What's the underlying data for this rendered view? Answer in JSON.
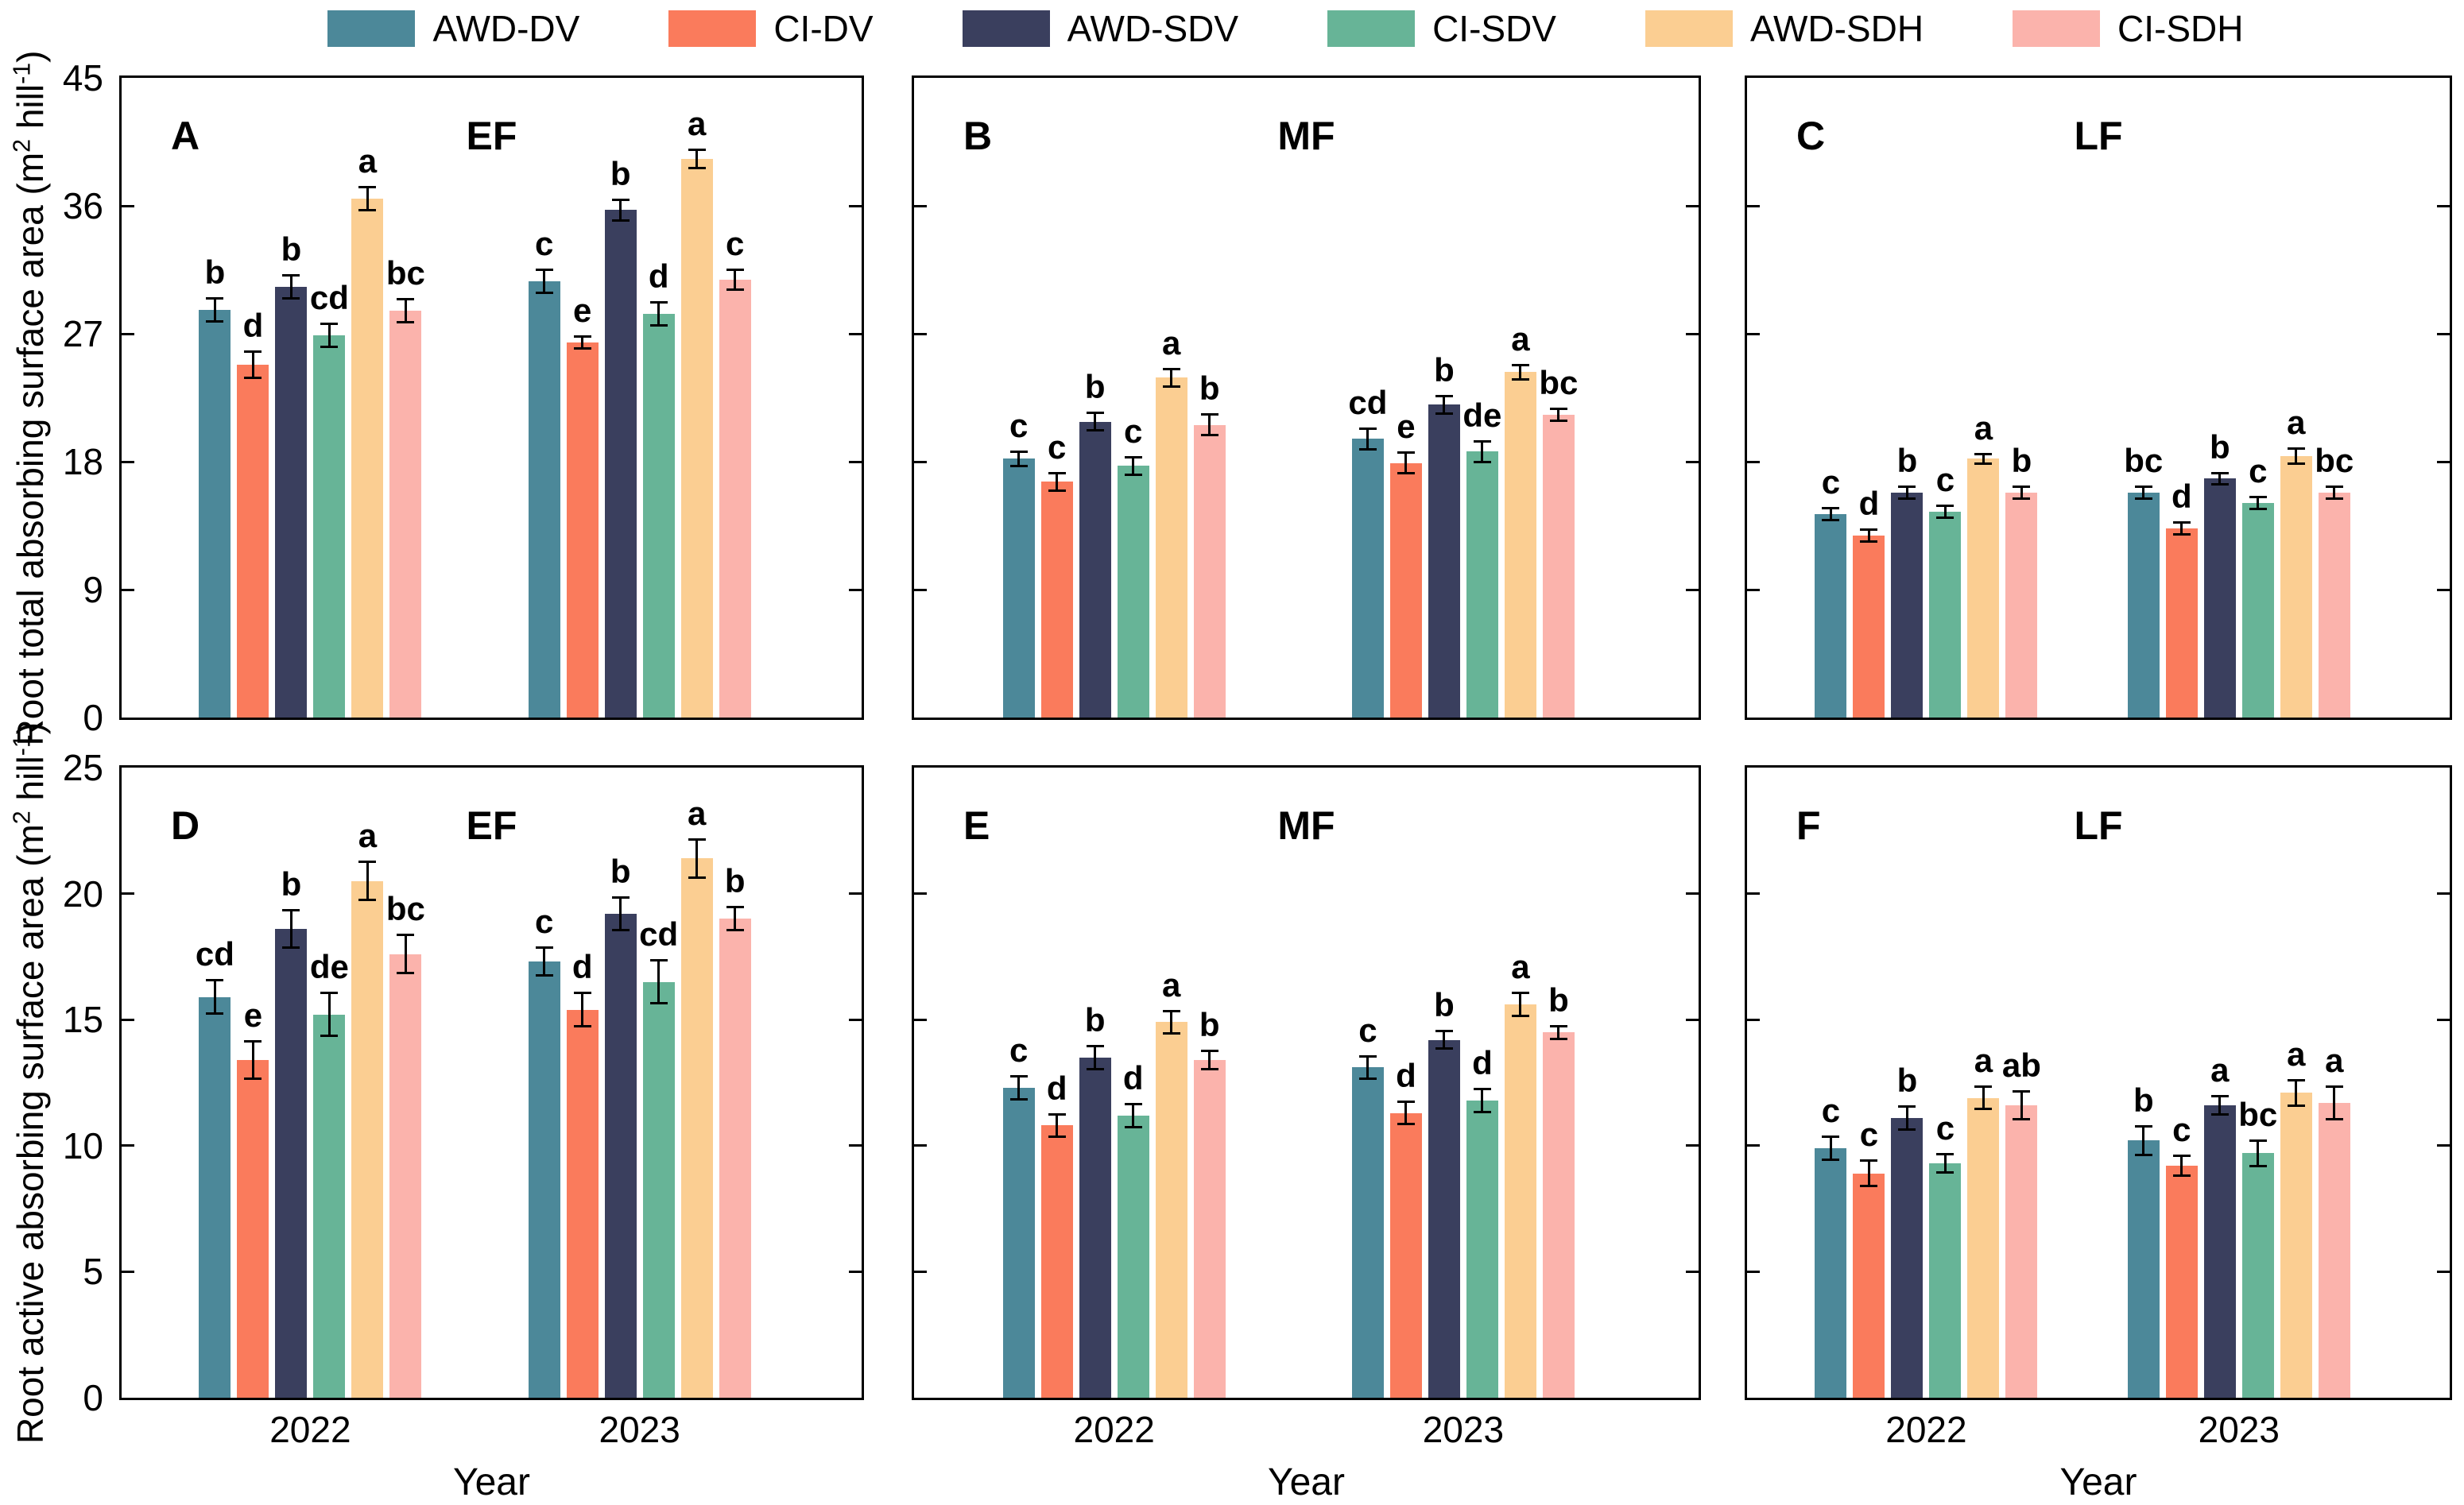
{
  "legend": [
    {
      "label": "AWD-DV",
      "color": "#4C8899"
    },
    {
      "label": "CI-DV",
      "color": "#FA7B5C"
    },
    {
      "label": "AWD-SDV",
      "color": "#3A3F5E"
    },
    {
      "label": "CI-SDV",
      "color": "#67B497"
    },
    {
      "label": "AWD-SDH",
      "color": "#FBCE92"
    },
    {
      "label": "CI-SDH",
      "color": "#FBB3AC"
    }
  ],
  "figure": {
    "xlabel": "Year",
    "categories": [
      "2022",
      "2023"
    ],
    "axis_color": "#000000",
    "background": "#ffffff"
  },
  "ylabels": [
    {
      "pre": "Root total absorbing surface area (m",
      "sup1": "2",
      "mid": " hill",
      "sup2": "-1",
      "post": ")"
    },
    {
      "pre": "Root active absorbing surface area (m",
      "sup1": "2",
      "mid": " hill",
      "sup2": "-1",
      "post": ")"
    }
  ],
  "chart_data": [
    {
      "id": "A",
      "type": "bar",
      "title": "EF",
      "row": 0,
      "col": 0,
      "ylim": [
        0,
        45
      ],
      "yticks": [
        0,
        9,
        18,
        27,
        36,
        45
      ],
      "categories": [
        "2022",
        "2023"
      ],
      "series": [
        {
          "name": "AWD-DV",
          "values": [
            28.7,
            30.7
          ],
          "errors": [
            0.9,
            0.9
          ],
          "letters": [
            "b",
            "c"
          ]
        },
        {
          "name": "CI-DV",
          "values": [
            24.8,
            26.4
          ],
          "errors": [
            1.0,
            0.5
          ],
          "letters": [
            "d",
            "e"
          ]
        },
        {
          "name": "AWD-SDV",
          "values": [
            30.3,
            35.7
          ],
          "errors": [
            0.9,
            0.8
          ],
          "letters": [
            "b",
            "b"
          ]
        },
        {
          "name": "CI-SDV",
          "values": [
            26.9,
            28.4
          ],
          "errors": [
            0.9,
            0.9
          ],
          "letters": [
            "cd",
            "d"
          ]
        },
        {
          "name": "AWD-SDH",
          "values": [
            36.5,
            39.3
          ],
          "errors": [
            0.9,
            0.7
          ],
          "letters": [
            "a",
            "a"
          ]
        },
        {
          "name": "CI-SDH",
          "values": [
            28.6,
            30.8
          ],
          "errors": [
            0.9,
            0.8
          ],
          "letters": [
            "bc",
            "c"
          ]
        }
      ]
    },
    {
      "id": "B",
      "type": "bar",
      "title": "MF",
      "row": 0,
      "col": 1,
      "ylim": [
        0,
        45
      ],
      "yticks": [
        0,
        9,
        18,
        27,
        36,
        45
      ],
      "categories": [
        "2022",
        "2023"
      ],
      "series": [
        {
          "name": "AWD-DV",
          "values": [
            18.2,
            19.6
          ],
          "errors": [
            0.6,
            0.8
          ],
          "letters": [
            "c",
            "cd"
          ]
        },
        {
          "name": "CI-DV",
          "values": [
            16.6,
            17.9
          ],
          "errors": [
            0.7,
            0.8
          ],
          "letters": [
            "c",
            "e"
          ]
        },
        {
          "name": "AWD-SDV",
          "values": [
            20.8,
            22.0
          ],
          "errors": [
            0.7,
            0.7
          ],
          "letters": [
            "b",
            "b"
          ]
        },
        {
          "name": "CI-SDV",
          "values": [
            17.7,
            18.7
          ],
          "errors": [
            0.7,
            0.8
          ],
          "letters": [
            "c",
            "de"
          ]
        },
        {
          "name": "AWD-SDH",
          "values": [
            23.9,
            24.3
          ],
          "errors": [
            0.7,
            0.6
          ],
          "letters": [
            "a",
            "a"
          ]
        },
        {
          "name": "CI-SDH",
          "values": [
            20.6,
            21.3
          ],
          "errors": [
            0.8,
            0.5
          ],
          "letters": [
            "b",
            "bc"
          ]
        }
      ]
    },
    {
      "id": "C",
      "type": "bar",
      "title": "LF",
      "row": 0,
      "col": 2,
      "ylim": [
        0,
        45
      ],
      "yticks": [
        0,
        9,
        18,
        27,
        36,
        45
      ],
      "categories": [
        "2022",
        "2023"
      ],
      "series": [
        {
          "name": "AWD-DV",
          "values": [
            14.3,
            15.8
          ],
          "errors": [
            0.5,
            0.5
          ],
          "letters": [
            "c",
            "bc"
          ]
        },
        {
          "name": "CI-DV",
          "values": [
            12.8,
            13.3
          ],
          "errors": [
            0.5,
            0.5
          ],
          "letters": [
            "d",
            "d"
          ]
        },
        {
          "name": "AWD-SDV",
          "values": [
            15.8,
            16.8
          ],
          "errors": [
            0.5,
            0.5
          ],
          "letters": [
            "b",
            "b"
          ]
        },
        {
          "name": "CI-SDV",
          "values": [
            14.5,
            15.1
          ],
          "errors": [
            0.5,
            0.5
          ],
          "letters": [
            "c",
            "c"
          ]
        },
        {
          "name": "AWD-SDH",
          "values": [
            18.2,
            18.4
          ],
          "errors": [
            0.4,
            0.6
          ],
          "letters": [
            "a",
            "a"
          ]
        },
        {
          "name": "CI-SDH",
          "values": [
            15.8,
            15.8
          ],
          "errors": [
            0.5,
            0.5
          ],
          "letters": [
            "b",
            "bc"
          ]
        }
      ]
    },
    {
      "id": "D",
      "type": "bar",
      "title": "EF",
      "row": 1,
      "col": 0,
      "ylim": [
        0,
        25
      ],
      "yticks": [
        0,
        5,
        10,
        15,
        20,
        25
      ],
      "categories": [
        "2022",
        "2023"
      ],
      "series": [
        {
          "name": "AWD-DV",
          "values": [
            15.9,
            17.3
          ],
          "errors": [
            0.7,
            0.6
          ],
          "letters": [
            "cd",
            "c"
          ]
        },
        {
          "name": "CI-DV",
          "values": [
            13.4,
            15.4
          ],
          "errors": [
            0.8,
            0.7
          ],
          "letters": [
            "e",
            "d"
          ]
        },
        {
          "name": "AWD-SDV",
          "values": [
            18.6,
            19.2
          ],
          "errors": [
            0.8,
            0.7
          ],
          "letters": [
            "b",
            "b"
          ]
        },
        {
          "name": "CI-SDV",
          "values": [
            15.2,
            16.5
          ],
          "errors": [
            0.9,
            0.9
          ],
          "letters": [
            "de",
            "cd"
          ]
        },
        {
          "name": "AWD-SDH",
          "values": [
            20.5,
            21.4
          ],
          "errors": [
            0.8,
            0.8
          ],
          "letters": [
            "a",
            "a"
          ]
        },
        {
          "name": "CI-SDH",
          "values": [
            17.6,
            19.0
          ],
          "errors": [
            0.8,
            0.5
          ],
          "letters": [
            "bc",
            "b"
          ]
        }
      ]
    },
    {
      "id": "E",
      "type": "bar",
      "title": "MF",
      "row": 1,
      "col": 1,
      "ylim": [
        0,
        25
      ],
      "yticks": [
        0,
        5,
        10,
        15,
        20,
        25
      ],
      "categories": [
        "2022",
        "2023"
      ],
      "series": [
        {
          "name": "AWD-DV",
          "values": [
            12.3,
            13.1
          ],
          "errors": [
            0.5,
            0.5
          ],
          "letters": [
            "c",
            "c"
          ]
        },
        {
          "name": "CI-DV",
          "values": [
            10.8,
            11.3
          ],
          "errors": [
            0.5,
            0.5
          ],
          "letters": [
            "d",
            "d"
          ]
        },
        {
          "name": "AWD-SDV",
          "values": [
            13.5,
            14.2
          ],
          "errors": [
            0.5,
            0.4
          ],
          "letters": [
            "b",
            "b"
          ]
        },
        {
          "name": "CI-SDV",
          "values": [
            11.2,
            11.8
          ],
          "errors": [
            0.5,
            0.5
          ],
          "letters": [
            "d",
            "d"
          ]
        },
        {
          "name": "AWD-SDH",
          "values": [
            14.9,
            15.6
          ],
          "errors": [
            0.5,
            0.5
          ],
          "letters": [
            "a",
            "a"
          ]
        },
        {
          "name": "CI-SDH",
          "values": [
            13.4,
            14.5
          ],
          "errors": [
            0.4,
            0.3
          ],
          "letters": [
            "b",
            "b"
          ]
        }
      ]
    },
    {
      "id": "F",
      "type": "bar",
      "title": "LF",
      "row": 1,
      "col": 2,
      "ylim": [
        0,
        25
      ],
      "yticks": [
        0,
        5,
        10,
        15,
        20,
        25
      ],
      "categories": [
        "2022",
        "2023"
      ],
      "series": [
        {
          "name": "AWD-DV",
          "values": [
            9.9,
            10.2
          ],
          "errors": [
            0.5,
            0.6
          ],
          "letters": [
            "c",
            "b"
          ]
        },
        {
          "name": "CI-DV",
          "values": [
            8.9,
            9.2
          ],
          "errors": [
            0.55,
            0.45
          ],
          "letters": [
            "c",
            "c"
          ]
        },
        {
          "name": "AWD-SDV",
          "values": [
            11.1,
            11.6
          ],
          "errors": [
            0.5,
            0.4
          ],
          "letters": [
            "b",
            "a"
          ]
        },
        {
          "name": "CI-SDV",
          "values": [
            9.3,
            9.7
          ],
          "errors": [
            0.4,
            0.55
          ],
          "letters": [
            "c",
            "bc"
          ]
        },
        {
          "name": "AWD-SDH",
          "values": [
            11.9,
            12.1
          ],
          "errors": [
            0.5,
            0.55
          ],
          "letters": [
            "a",
            "a"
          ]
        },
        {
          "name": "CI-SDH",
          "values": [
            11.6,
            11.7
          ],
          "errors": [
            0.6,
            0.7
          ],
          "letters": [
            "ab",
            "a"
          ]
        }
      ]
    }
  ]
}
